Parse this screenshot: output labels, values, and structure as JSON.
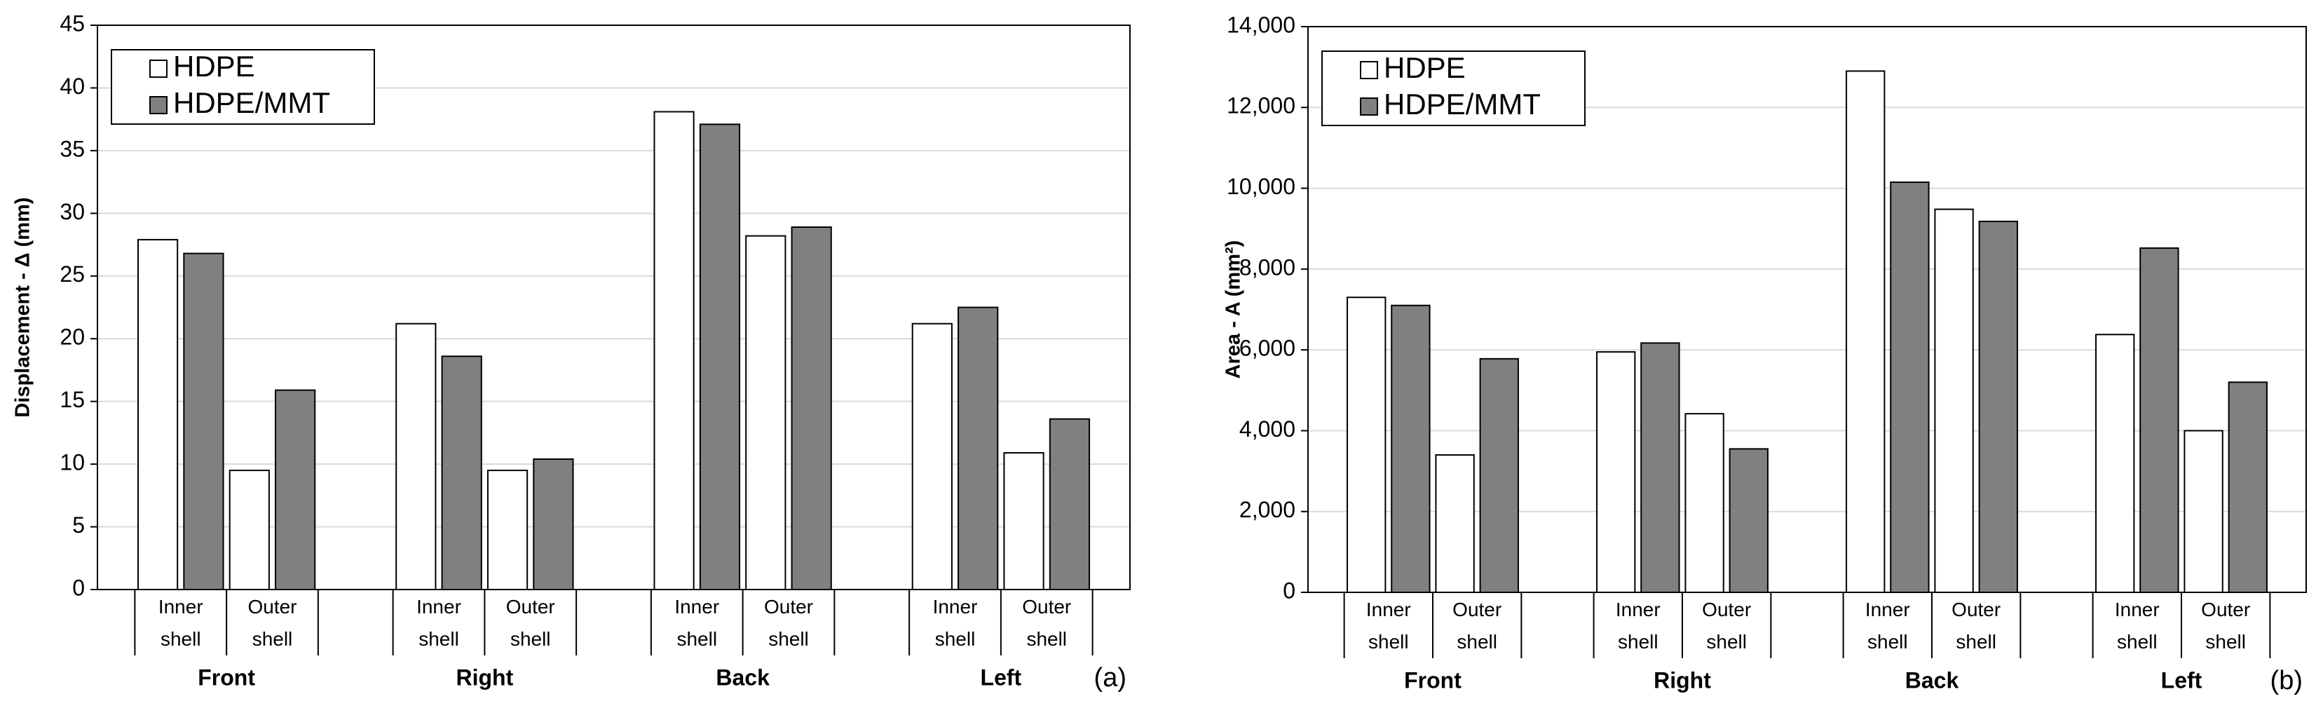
{
  "chart_data": [
    {
      "type": "bar",
      "ylabel": "Displacement - Δ (mm)",
      "panel_label": "(a)",
      "groups": [
        "Front",
        "Right",
        "Back",
        "Left"
      ],
      "categories": [
        "Inner shell",
        "Outer shell",
        "Inner shell",
        "Outer shell",
        "Inner shell",
        "Outer shell",
        "Inner shell",
        "Outer shell"
      ],
      "series": [
        {
          "name": "HDPE",
          "color": "#ffffff",
          "values": [
            27.9,
            9.5,
            21.2,
            9.5,
            38.1,
            28.2,
            21.2,
            10.9
          ]
        },
        {
          "name": "HDPE/MMT",
          "color": "#808080",
          "values": [
            26.8,
            15.9,
            18.6,
            10.4,
            37.1,
            28.9,
            22.5,
            13.6
          ]
        }
      ],
      "ylim": [
        0,
        45
      ],
      "yticks": [
        0,
        5,
        10,
        15,
        20,
        25,
        30,
        35,
        40,
        45
      ],
      "grid": true,
      "legend": "upper left"
    },
    {
      "type": "bar",
      "ylabel": "Area - A (mm²)",
      "panel_label": "(b)",
      "groups": [
        "Front",
        "Right",
        "Back",
        "Left"
      ],
      "categories": [
        "Inner shell",
        "Outer shell",
        "Inner shell",
        "Outer shell",
        "Inner shell",
        "Outer shell",
        "Inner shell",
        "Outer shell"
      ],
      "series": [
        {
          "name": "HDPE",
          "color": "#ffffff",
          "values": [
            7300,
            3400,
            5950,
            4420,
            12900,
            9480,
            6380,
            4000
          ]
        },
        {
          "name": "HDPE/MMT",
          "color": "#808080",
          "values": [
            7100,
            5780,
            6170,
            3550,
            10150,
            9180,
            8520,
            5200
          ]
        }
      ],
      "ylim": [
        0,
        14000
      ],
      "yticks": [
        0,
        {
          "value": 2000,
          "label": "2,000"
        },
        {
          "value": 4000,
          "label": "4,000"
        },
        {
          "value": 6000,
          "label": "6,000"
        },
        {
          "value": 8000,
          "label": "8,000"
        },
        {
          "value": 10000,
          "label": "10,000"
        },
        {
          "value": 12000,
          "label": "12,000"
        },
        {
          "value": 14000,
          "label": "14,000"
        }
      ],
      "grid": true,
      "legend": "upper left"
    }
  ]
}
